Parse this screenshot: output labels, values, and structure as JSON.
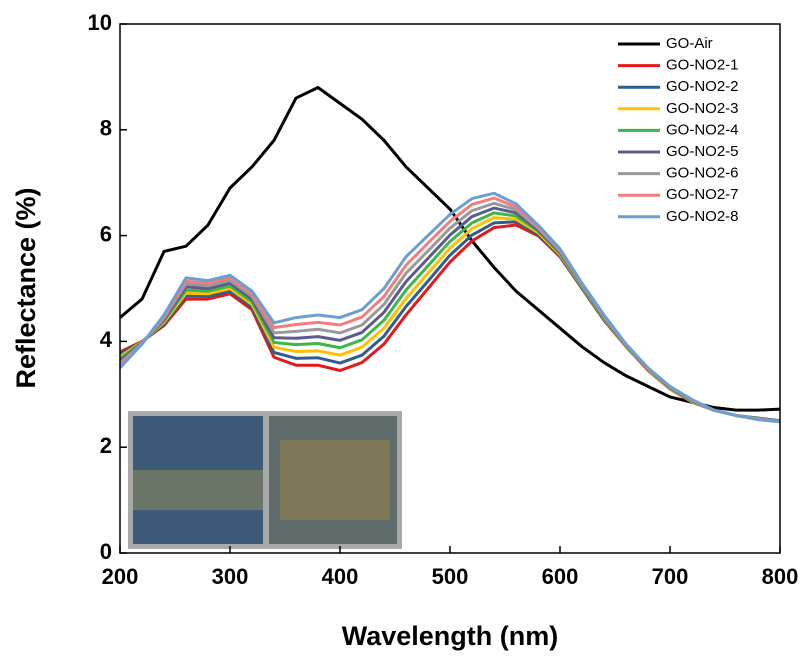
{
  "chart_data": {
    "type": "line",
    "x_label": "Wavelength (nm)",
    "y_label": "Reflectance (%)",
    "x": [
      200,
      220,
      240,
      260,
      280,
      300,
      320,
      340,
      360,
      380,
      400,
      420,
      440,
      460,
      480,
      500,
      520,
      540,
      560,
      580,
      600,
      620,
      640,
      660,
      680,
      700,
      720,
      740,
      760,
      780,
      800
    ],
    "xlim": [
      200,
      800
    ],
    "xticks": [
      200,
      300,
      400,
      500,
      600,
      700,
      800
    ],
    "ylim": [
      0,
      10
    ],
    "yticks": [
      0,
      2,
      4,
      6,
      8,
      10
    ],
    "legend": "upper right",
    "series": [
      {
        "name": "GO-Air",
        "color": "#000000",
        "values": [
          4.45,
          4.8,
          5.7,
          5.8,
          6.2,
          6.9,
          7.3,
          7.8,
          8.6,
          8.8,
          8.5,
          8.2,
          7.8,
          7.3,
          6.9,
          6.5,
          5.9,
          5.4,
          4.95,
          4.6,
          4.25,
          3.9,
          3.6,
          3.35,
          3.15,
          2.95,
          2.85,
          2.75,
          2.7,
          2.7,
          2.72
        ]
      },
      {
        "name": "GO-NO2-1",
        "color": "#e31a1c",
        "values": [
          3.8,
          4.0,
          4.3,
          4.8,
          4.8,
          4.9,
          4.6,
          3.7,
          3.55,
          3.55,
          3.45,
          3.6,
          3.95,
          4.5,
          5.0,
          5.5,
          5.9,
          6.15,
          6.2,
          6.0,
          5.6,
          5.0,
          4.4,
          3.9,
          3.45,
          3.1,
          2.85,
          2.7,
          2.6,
          2.55,
          2.5
        ]
      },
      {
        "name": "GO-NO2-2",
        "color": "#2f5d8c",
        "values": [
          3.76,
          3.99,
          4.33,
          4.86,
          4.85,
          4.95,
          4.65,
          3.79,
          3.68,
          3.69,
          3.59,
          3.74,
          4.1,
          4.66,
          5.14,
          5.63,
          6.01,
          6.24,
          6.26,
          6.03,
          5.62,
          5.01,
          4.41,
          3.91,
          3.46,
          3.11,
          2.86,
          2.7,
          2.6,
          2.55,
          2.5
        ]
      },
      {
        "name": "GO-NO2-3",
        "color": "#ffc000",
        "values": [
          3.71,
          3.99,
          4.36,
          4.91,
          4.9,
          5.0,
          4.7,
          3.89,
          3.81,
          3.82,
          3.74,
          3.89,
          4.25,
          4.81,
          5.29,
          5.76,
          6.13,
          6.34,
          6.31,
          6.06,
          5.64,
          5.03,
          4.43,
          3.91,
          3.46,
          3.11,
          2.86,
          2.7,
          2.6,
          2.54,
          2.49
        ]
      },
      {
        "name": "GO-NO2-4",
        "color": "#3cb54a",
        "values": [
          3.67,
          3.98,
          4.39,
          4.97,
          4.95,
          5.05,
          4.75,
          3.98,
          3.94,
          3.96,
          3.88,
          4.03,
          4.4,
          4.97,
          5.43,
          5.89,
          6.24,
          6.43,
          6.37,
          6.09,
          5.66,
          5.04,
          4.44,
          3.92,
          3.47,
          3.12,
          2.87,
          2.7,
          2.6,
          2.54,
          2.49
        ]
      },
      {
        "name": "GO-NO2-5",
        "color": "#5b5b8c",
        "values": [
          3.63,
          3.97,
          4.41,
          5.03,
          5.0,
          5.1,
          4.8,
          4.07,
          4.06,
          4.09,
          4.02,
          4.17,
          4.55,
          5.13,
          5.57,
          6.01,
          6.36,
          6.52,
          6.43,
          6.11,
          5.69,
          5.06,
          4.46,
          3.93,
          3.48,
          3.13,
          2.88,
          2.7,
          2.6,
          2.53,
          2.49
        ]
      },
      {
        "name": "GO-NO2-6",
        "color": "#999999",
        "values": [
          3.59,
          3.96,
          4.44,
          5.09,
          5.05,
          5.15,
          4.85,
          4.16,
          4.19,
          4.23,
          4.16,
          4.31,
          4.7,
          5.29,
          5.71,
          6.14,
          6.47,
          6.61,
          6.49,
          6.14,
          5.71,
          5.07,
          4.47,
          3.94,
          3.49,
          3.14,
          2.89,
          2.7,
          2.6,
          2.53,
          2.49
        ]
      },
      {
        "name": "GO-NO2-7",
        "color": "#f47c7c",
        "values": [
          3.54,
          3.96,
          4.47,
          5.14,
          5.1,
          5.2,
          4.9,
          4.26,
          4.32,
          4.36,
          4.31,
          4.46,
          4.85,
          5.44,
          5.86,
          6.27,
          6.59,
          6.71,
          6.54,
          6.17,
          5.73,
          5.09,
          4.49,
          3.94,
          3.49,
          3.14,
          2.89,
          2.7,
          2.6,
          2.53,
          2.48
        ]
      },
      {
        "name": "GO-NO2-8",
        "color": "#6a9fd4",
        "values": [
          3.5,
          3.95,
          4.5,
          5.2,
          5.15,
          5.25,
          4.95,
          4.35,
          4.45,
          4.5,
          4.45,
          4.6,
          5.0,
          5.6,
          6.0,
          6.4,
          6.7,
          6.8,
          6.6,
          6.2,
          5.75,
          5.1,
          4.5,
          3.95,
          3.5,
          3.15,
          2.9,
          2.7,
          2.6,
          2.52,
          2.48
        ]
      }
    ]
  }
}
